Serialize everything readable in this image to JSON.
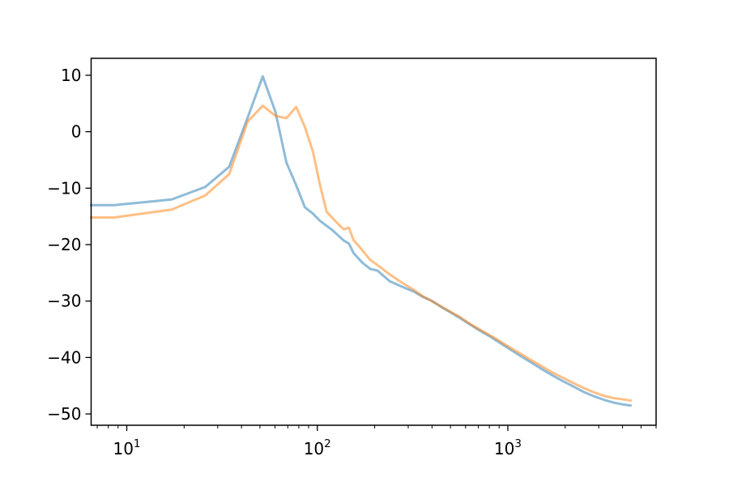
{
  "chart_data": {
    "type": "line",
    "title": "",
    "xlabel": "",
    "ylabel": "",
    "xscale": "log",
    "xlim": [
      6.5,
      6000
    ],
    "ylim": [
      -52,
      13
    ],
    "grid": false,
    "x_major_ticks": [
      10,
      100,
      1000
    ],
    "x_tick_labels": [
      {
        "base": "10",
        "exp": "1"
      },
      {
        "base": "10",
        "exp": "2"
      },
      {
        "base": "10",
        "exp": "3"
      }
    ],
    "y_ticks": [
      10,
      0,
      -10,
      -20,
      -30,
      -40,
      -50
    ],
    "y_tick_labels": [
      "10",
      "0",
      "−10",
      "−20",
      "−30",
      "−40",
      "−50"
    ],
    "series": [
      {
        "color": "#1f77b4",
        "opacity": 0.5,
        "points": [
          [
            6.5,
            -13.0
          ],
          [
            8.6,
            -13.0
          ],
          [
            17.2,
            -12.0
          ],
          [
            25.8,
            -9.8
          ],
          [
            34.5,
            -6.2
          ],
          [
            43.1,
            2.5
          ],
          [
            51.7,
            9.8
          ],
          [
            60.3,
            3.5
          ],
          [
            68.9,
            -5.5
          ],
          [
            77.5,
            -9.5
          ],
          [
            86.1,
            -13.4
          ],
          [
            94.8,
            -14.5
          ],
          [
            103.4,
            -15.8
          ],
          [
            120.6,
            -17.5
          ],
          [
            137.8,
            -19.3
          ],
          [
            146.4,
            -19.8
          ],
          [
            155.0,
            -21.5
          ],
          [
            172.3,
            -23.2
          ],
          [
            189.5,
            -24.3
          ],
          [
            206.7,
            -24.6
          ],
          [
            240.0,
            -26.5
          ],
          [
            280.0,
            -27.5
          ],
          [
            320.0,
            -28.3
          ],
          [
            360.0,
            -29.3
          ],
          [
            400.0,
            -30.0
          ],
          [
            450.0,
            -31.1
          ],
          [
            500.0,
            -32.0
          ],
          [
            560.0,
            -33.0
          ],
          [
            630.0,
            -34.1
          ],
          [
            710.0,
            -35.2
          ],
          [
            800.0,
            -36.2
          ],
          [
            900.0,
            -37.3
          ],
          [
            1000.0,
            -38.3
          ],
          [
            1150.0,
            -39.6
          ],
          [
            1300.0,
            -40.7
          ],
          [
            1500.0,
            -42.0
          ],
          [
            1700.0,
            -43.1
          ],
          [
            1950.0,
            -44.2
          ],
          [
            2200.0,
            -45.1
          ],
          [
            2500.0,
            -46.1
          ],
          [
            2850.0,
            -46.9
          ],
          [
            3200.0,
            -47.5
          ],
          [
            3600.0,
            -48.0
          ],
          [
            4000.0,
            -48.3
          ],
          [
            4400.0,
            -48.5
          ]
        ]
      },
      {
        "color": "#ff7f0e",
        "opacity": 0.5,
        "points": [
          [
            6.5,
            -15.2
          ],
          [
            8.6,
            -15.2
          ],
          [
            17.2,
            -13.8
          ],
          [
            25.8,
            -11.3
          ],
          [
            34.5,
            -7.5
          ],
          [
            43.1,
            1.8
          ],
          [
            51.7,
            4.6
          ],
          [
            60.3,
            2.8
          ],
          [
            68.9,
            2.4
          ],
          [
            77.5,
            4.4
          ],
          [
            86.1,
            0.8
          ],
          [
            94.8,
            -3.5
          ],
          [
            103.4,
            -9.5
          ],
          [
            112.0,
            -14.2
          ],
          [
            129.2,
            -16.4
          ],
          [
            137.8,
            -17.3
          ],
          [
            146.4,
            -17.0
          ],
          [
            155.0,
            -19.2
          ],
          [
            172.3,
            -21.0
          ],
          [
            189.5,
            -22.7
          ],
          [
            206.7,
            -23.6
          ],
          [
            240.0,
            -25.3
          ],
          [
            280.0,
            -26.8
          ],
          [
            320.0,
            -28.0
          ],
          [
            360.0,
            -29.2
          ],
          [
            400.0,
            -30.0
          ],
          [
            450.0,
            -31.0
          ],
          [
            500.0,
            -31.9
          ],
          [
            560.0,
            -32.8
          ],
          [
            630.0,
            -34.0
          ],
          [
            710.0,
            -35.0
          ],
          [
            800.0,
            -36.0
          ],
          [
            900.0,
            -37.0
          ],
          [
            1000.0,
            -38.0
          ],
          [
            1150.0,
            -39.2
          ],
          [
            1300.0,
            -40.3
          ],
          [
            1500.0,
            -41.5
          ],
          [
            1700.0,
            -42.6
          ],
          [
            1950.0,
            -43.6
          ],
          [
            2200.0,
            -44.5
          ],
          [
            2500.0,
            -45.4
          ],
          [
            2850.0,
            -46.2
          ],
          [
            3200.0,
            -46.8
          ],
          [
            3600.0,
            -47.2
          ],
          [
            4000.0,
            -47.4
          ],
          [
            4400.0,
            -47.6
          ]
        ]
      }
    ]
  }
}
